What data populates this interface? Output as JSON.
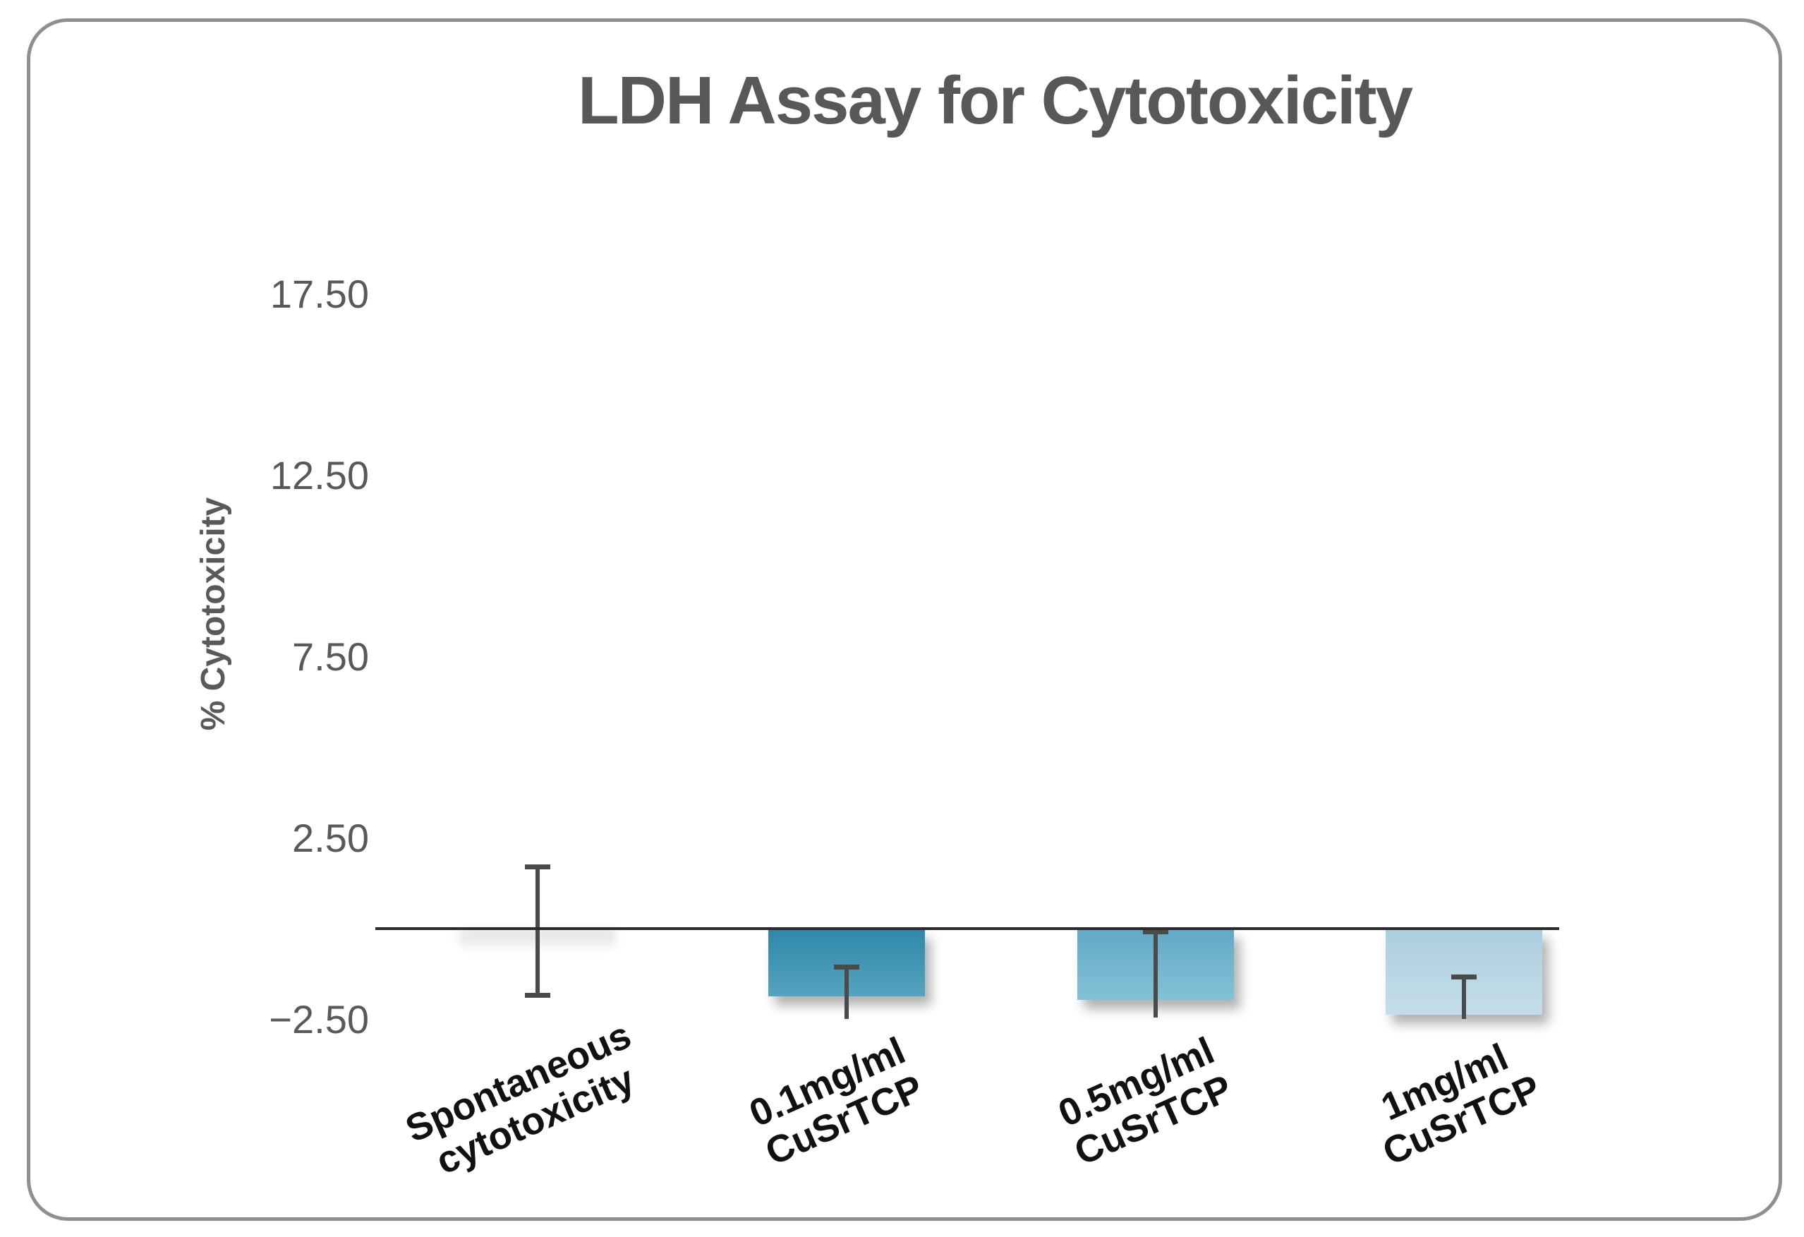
{
  "chart_data": {
    "type": "bar",
    "title": "LDH Assay for Cytotoxicity",
    "ylabel": "% Cytotoxicity",
    "xlabel": "",
    "categories": [
      "Spontaneous cytotoxicity",
      "0.1mg/ml CuSrTCP",
      "0.5mg/ml CuSrTCP",
      "1mg/ml CuSrTCP"
    ],
    "category_lines": [
      [
        "Spontaneous",
        "cytotoxicity"
      ],
      [
        "0.1mg/ml",
        "CuSrTCP"
      ],
      [
        "0.5mg/ml",
        "CuSrTCP"
      ],
      [
        "1mg/ml",
        "CuSrTCP"
      ]
    ],
    "values": [
      -0.5,
      -1.85,
      -1.95,
      -2.35
    ],
    "error_bars": [
      {
        "high": 1.72,
        "low": -1.82,
        "caps": "both"
      },
      {
        "high": -1.05,
        "low": -2.5,
        "caps": "top"
      },
      {
        "high": -0.08,
        "low": -2.45,
        "caps": "top"
      },
      {
        "high": -1.33,
        "low": -2.5,
        "caps": "top"
      }
    ],
    "yticks": [
      {
        "label": "17.50",
        "value": 17.5
      },
      {
        "label": "12.50",
        "value": 12.5
      },
      {
        "label": "7.50",
        "value": 7.5
      },
      {
        "label": "2.50",
        "value": 2.5
      },
      {
        "label": "−2.50",
        "value": -2.5
      }
    ],
    "ylim": [
      -3.6,
      19.0
    ],
    "grid": false,
    "legend": null,
    "bar_styles": [
      {
        "top": "#e0e0e0",
        "bottom": "#f4f4f4",
        "faint": true
      },
      {
        "top": "#2f87a8",
        "bottom": "#55a4c0",
        "faint": false
      },
      {
        "top": "#61a9c5",
        "bottom": "#84c1d7",
        "faint": false
      },
      {
        "top": "#abcfdf",
        "bottom": "#c6dde9",
        "faint": false
      }
    ],
    "colors": {
      "title_text": "#58585a",
      "tick_text": "#595959",
      "ylabel_text": "#595959",
      "xlabel_text": "#111111",
      "axis_line": "#2b2b2b",
      "error_bar": "#4a4a4a",
      "frame_border": "#8f8f8f"
    }
  }
}
